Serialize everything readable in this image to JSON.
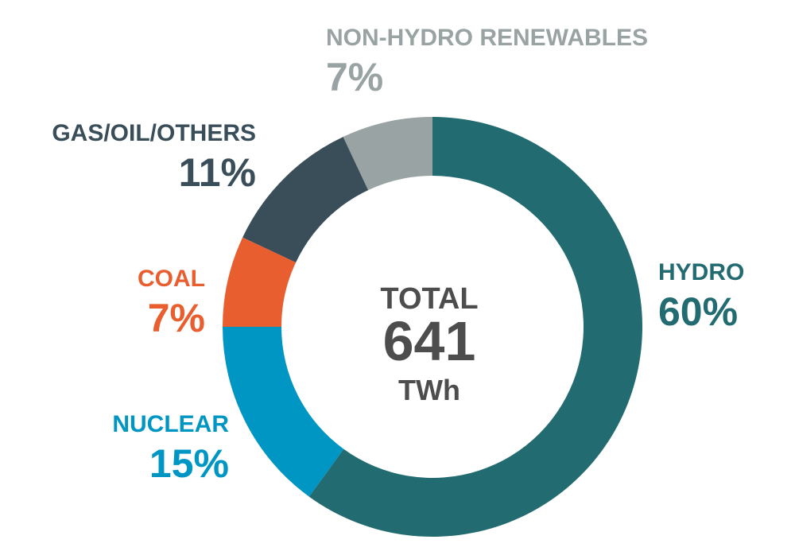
{
  "chart_data": {
    "type": "pie",
    "donut": true,
    "categories": [
      "HYDRO",
      "NUCLEAR",
      "COAL",
      "GAS/OIL/OTHERS",
      "NON-HYDRO RENEWABLES"
    ],
    "values": [
      60,
      15,
      7,
      11,
      7
    ],
    "value_labels": [
      "60%",
      "15%",
      "7%",
      "11%",
      "7%"
    ],
    "colors": [
      "#226b70",
      "#0096c4",
      "#e95e2f",
      "#3a4e5a",
      "#9aa3a3"
    ],
    "center_title": "TOTAL",
    "total": 641,
    "unit": "TWh"
  }
}
